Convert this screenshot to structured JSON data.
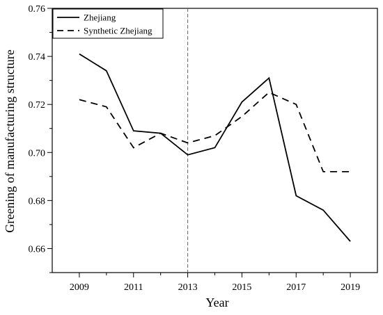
{
  "chart_data": {
    "type": "line",
    "title": "",
    "xlabel": "Year",
    "ylabel": "Greening of manufacturing structure",
    "x": [
      2009,
      2010,
      2011,
      2012,
      2013,
      2014,
      2015,
      2016,
      2017,
      2018,
      2019
    ],
    "xlim": [
      2008,
      2020
    ],
    "ylim": [
      0.65,
      0.76
    ],
    "xticks": [
      2009,
      2011,
      2013,
      2015,
      2017,
      2019
    ],
    "yticks": [
      0.66,
      0.68,
      0.7,
      0.72,
      0.74,
      0.76
    ],
    "ytick_labels": [
      "0.66",
      "0.68",
      "0.70",
      "0.72",
      "0.74",
      "0.76"
    ],
    "grid": false,
    "legend_position": "top-left",
    "treatment_year": 2013,
    "series": [
      {
        "name": "Zhejiang",
        "style": "solid",
        "color": "#000000",
        "values": [
          0.741,
          0.734,
          0.709,
          0.708,
          0.699,
          0.702,
          0.721,
          0.731,
          0.682,
          0.676,
          0.663
        ]
      },
      {
        "name": "Synthetic Zhejiang",
        "style": "dashed",
        "color": "#000000",
        "values": [
          0.722,
          0.719,
          0.702,
          0.708,
          0.704,
          0.707,
          0.715,
          0.725,
          0.72,
          0.692,
          0.692
        ]
      }
    ]
  }
}
